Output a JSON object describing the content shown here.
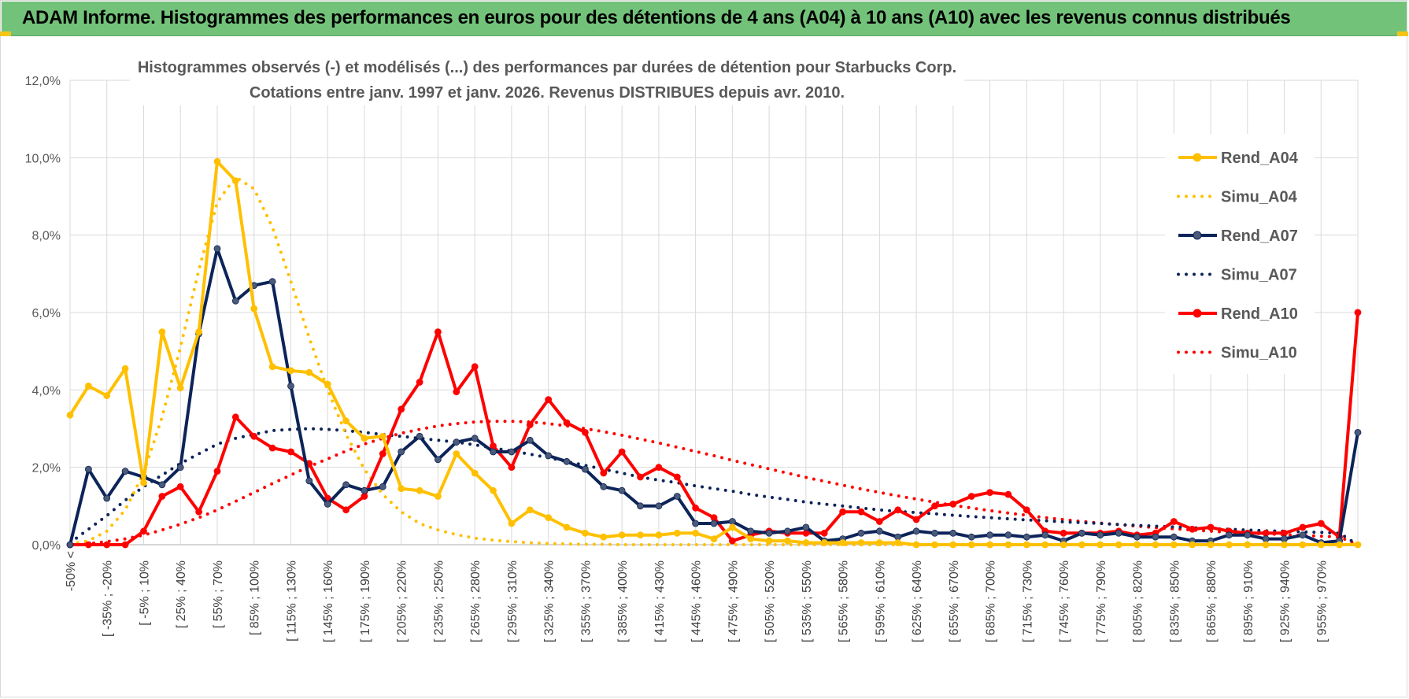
{
  "header": {
    "title": "ADAM Informe. Histogrammes des performances en euros pour des détentions de 4 ans (A04) à 10 ans (A10) avec les revenus connus distribués"
  },
  "colors": {
    "banner": "#73c27a",
    "A04": "#ffc000",
    "A07": "#0d2459",
    "A07_marker": "#4a5a78",
    "A10": "#ff0000"
  },
  "chart_data": {
    "type": "line",
    "title_lines": [
      "Histogrammes observés (-) et modélisés (...) des performances par durées de détention pour Starbucks Corp.",
      "Cotations entre janv. 1997 et janv. 2026. Revenus DISTRIBUES depuis avr. 2010."
    ],
    "ylim": [
      0,
      12
    ],
    "yticks": [
      "0,0%",
      "2,0%",
      "4,0%",
      "6,0%",
      "8,0%",
      "10,0%",
      "12,0%"
    ],
    "x_tick_labels": [
      "-50% <",
      "[ -35% ; -20%",
      "[ -5% ; 10%",
      "[ 25% ; 40%",
      "[ 55% ; 70%",
      "[ 85% ; 100%",
      "[ 115% ; 130%",
      "[ 145% ; 160%",
      "[ 175% ; 190%",
      "[ 205% ; 220%",
      "[ 235% ; 250%",
      "[ 265% ; 280%",
      "[ 295% ; 310%",
      "[ 325% ; 340%",
      "[ 355% ; 370%",
      "[ 385% ; 400%",
      "[ 415% ; 430%",
      "[ 445% ; 460%",
      "[ 475% ; 490%",
      "[ 505% ; 520%",
      "[ 535% ; 550%",
      "[ 565% ; 580%",
      "[ 595% ; 610%",
      "[ 625% ; 640%",
      "[ 655% ; 670%",
      "[ 685% ; 700%",
      "[ 715% ; 730%",
      "[ 745% ; 760%",
      "[ 775% ; 790%",
      "[ 805% ; 820%",
      "[ 835% ; 850%",
      "[ 865% ; 880%",
      "[ 895% ; 910%",
      "[ 925% ; 940%",
      "[ 955% ; 970%"
    ],
    "legend": [
      "Rend_A04",
      "Simu_A04",
      "Rend_A07",
      "Simu_A07",
      "Rend_A10",
      "Simu_A10"
    ],
    "legend_position": "right",
    "series": [
      {
        "name": "Rend_A04",
        "style": "solid",
        "values": [
          3.35,
          4.1,
          3.85,
          4.55,
          1.6,
          5.5,
          4.05,
          5.5,
          9.9,
          9.4,
          6.1,
          4.6,
          4.5,
          4.45,
          4.15,
          3.2,
          2.75,
          2.8,
          1.45,
          1.4,
          1.25,
          2.35,
          1.85,
          1.4,
          0.55,
          0.9,
          0.7,
          0.45,
          0.3,
          0.2,
          0.25,
          0.25,
          0.25,
          0.3,
          0.3,
          0.15,
          0.45,
          0.15,
          0.1,
          0.1,
          0.05,
          0.05,
          0.05,
          0.05,
          0.05,
          0.05,
          0.0,
          0.0,
          0.0,
          0.0,
          0.0,
          0.0,
          0.0,
          0.0,
          0.0,
          0.0,
          0.0,
          0.0,
          0.0,
          0.0,
          0.0,
          0.0,
          0.0,
          0.0,
          0.0,
          0.0,
          0.0,
          0.0,
          0.0,
          0.0,
          0.0
        ]
      },
      {
        "name": "Simu_A04",
        "style": "dotted",
        "values": [
          0.02,
          0.1,
          0.35,
          0.9,
          1.85,
          3.3,
          5.1,
          7.1,
          8.85,
          9.5,
          9.2,
          8.2,
          6.8,
          5.35,
          4.0,
          2.85,
          1.95,
          1.3,
          0.85,
          0.55,
          0.38,
          0.26,
          0.17,
          0.12,
          0.08,
          0.05,
          0.03,
          0.02,
          0.01,
          0.01,
          0.0,
          0.0,
          0.0,
          0.0,
          0.0,
          0.0,
          0.0,
          0.0,
          0.0,
          0.0,
          0.0,
          0.0,
          0.0,
          0.0,
          0.0,
          0.0,
          0.0,
          0.0,
          0.0,
          0.0,
          0.0,
          0.0,
          0.0,
          0.0,
          0.0,
          0.0,
          0.0,
          0.0,
          0.0,
          0.0,
          0.0,
          0.0,
          0.0,
          0.0,
          0.0,
          0.0,
          0.0,
          0.0,
          0.0,
          0.0,
          0.0
        ]
      },
      {
        "name": "Rend_A07",
        "style": "solid",
        "values": [
          0.0,
          1.95,
          1.2,
          1.9,
          1.75,
          1.55,
          2.0,
          5.45,
          7.65,
          6.3,
          6.7,
          6.8,
          4.1,
          1.65,
          1.05,
          1.55,
          1.4,
          1.5,
          2.4,
          2.8,
          2.2,
          2.65,
          2.75,
          2.4,
          2.4,
          2.7,
          2.3,
          2.15,
          1.95,
          1.5,
          1.4,
          1.0,
          1.0,
          1.25,
          0.55,
          0.55,
          0.6,
          0.35,
          0.3,
          0.35,
          0.45,
          0.1,
          0.15,
          0.3,
          0.35,
          0.2,
          0.35,
          0.3,
          0.3,
          0.2,
          0.25,
          0.25,
          0.2,
          0.25,
          0.1,
          0.3,
          0.25,
          0.3,
          0.2,
          0.2,
          0.2,
          0.1,
          0.1,
          0.25,
          0.25,
          0.15,
          0.15,
          0.25,
          0.05,
          0.1,
          2.9
        ]
      },
      {
        "name": "Simu_A07",
        "style": "dotted",
        "values": [
          0.05,
          0.4,
          0.75,
          1.15,
          1.5,
          1.8,
          2.1,
          2.35,
          2.6,
          2.75,
          2.85,
          2.95,
          2.98,
          3.0,
          2.98,
          2.95,
          2.9,
          2.85,
          2.8,
          2.75,
          2.7,
          2.65,
          2.58,
          2.5,
          2.42,
          2.34,
          2.25,
          2.15,
          2.05,
          1.95,
          1.85,
          1.75,
          1.67,
          1.6,
          1.52,
          1.45,
          1.38,
          1.3,
          1.23,
          1.17,
          1.1,
          1.05,
          1.0,
          0.95,
          0.9,
          0.86,
          0.83,
          0.8,
          0.76,
          0.73,
          0.7,
          0.67,
          0.64,
          0.62,
          0.59,
          0.57,
          0.55,
          0.52,
          0.5,
          0.48,
          0.46,
          0.44,
          0.42,
          0.4,
          0.38,
          0.36,
          0.35,
          0.33,
          0.32,
          0.3,
          0.0
        ]
      },
      {
        "name": "Rend_A10",
        "style": "solid",
        "values": [
          0.0,
          0.0,
          0.0,
          0.0,
          0.35,
          1.25,
          1.5,
          0.85,
          1.9,
          3.3,
          2.8,
          2.5,
          2.4,
          2.1,
          1.2,
          0.9,
          1.25,
          2.35,
          3.5,
          4.2,
          5.5,
          3.95,
          4.6,
          2.55,
          2.0,
          3.1,
          3.75,
          3.15,
          2.9,
          1.85,
          2.4,
          1.75,
          2.0,
          1.75,
          0.95,
          0.7,
          0.1,
          0.25,
          0.35,
          0.3,
          0.3,
          0.3,
          0.85,
          0.85,
          0.6,
          0.9,
          0.65,
          1.0,
          1.05,
          1.25,
          1.35,
          1.3,
          0.9,
          0.35,
          0.3,
          0.3,
          0.3,
          0.35,
          0.25,
          0.3,
          0.6,
          0.4,
          0.45,
          0.35,
          0.3,
          0.3,
          0.3,
          0.45,
          0.55,
          0.2,
          6.0
        ]
      },
      {
        "name": "Simu_A10",
        "style": "dotted",
        "values": [
          0.0,
          0.03,
          0.08,
          0.15,
          0.25,
          0.38,
          0.53,
          0.7,
          0.9,
          1.12,
          1.35,
          1.58,
          1.8,
          2.02,
          2.22,
          2.42,
          2.6,
          2.75,
          2.88,
          2.98,
          3.07,
          3.13,
          3.17,
          3.19,
          3.19,
          3.17,
          3.13,
          3.07,
          3.0,
          2.92,
          2.83,
          2.73,
          2.63,
          2.52,
          2.41,
          2.3,
          2.18,
          2.07,
          1.96,
          1.85,
          1.74,
          1.64,
          1.54,
          1.44,
          1.35,
          1.26,
          1.18,
          1.1,
          1.02,
          0.95,
          0.88,
          0.82,
          0.76,
          0.7,
          0.65,
          0.6,
          0.56,
          0.52,
          0.48,
          0.44,
          0.41,
          0.38,
          0.35,
          0.32,
          0.3,
          0.28,
          0.26,
          0.24,
          0.22,
          0.2,
          0.0
        ]
      }
    ]
  }
}
